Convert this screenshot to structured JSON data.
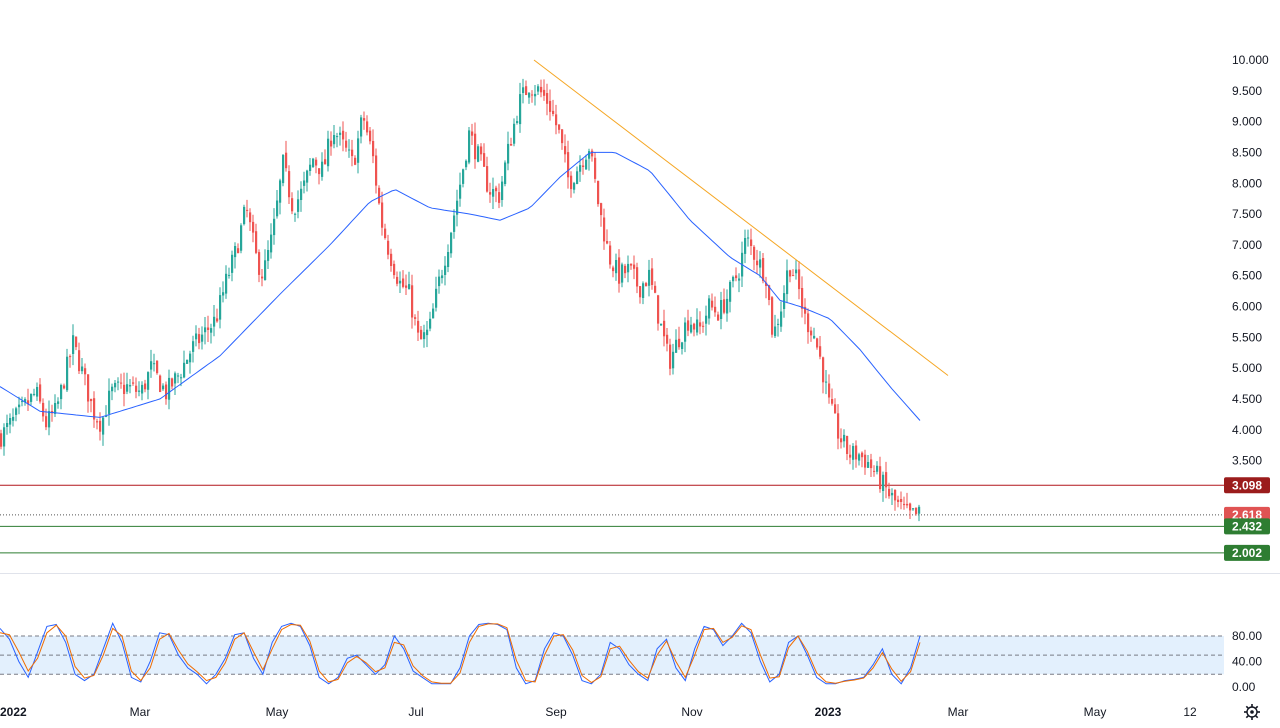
{
  "chart_data": [
    {
      "type": "candlestick",
      "y_ticks": [
        "10.000",
        "9.500",
        "9.000",
        "8.500",
        "8.000",
        "7.500",
        "7.000",
        "6.500",
        "6.000",
        "5.500",
        "5.000",
        "4.500",
        "4.000",
        "3.500"
      ],
      "ylim": [
        1.9,
        10.2
      ],
      "x_ticks": [
        "2022",
        "Mar",
        "May",
        "Jul",
        "Sep",
        "Nov",
        "2023",
        "Mar",
        "May",
        "12"
      ],
      "series_anchor_closes": [
        [
          0,
          3.9
        ],
        [
          10,
          4.1
        ],
        [
          25,
          4.4
        ],
        [
          35,
          4.6
        ],
        [
          45,
          4.1
        ],
        [
          55,
          4.3
        ],
        [
          72,
          5.4
        ],
        [
          80,
          5.0
        ],
        [
          92,
          4.3
        ],
        [
          100,
          4.1
        ],
        [
          110,
          4.6
        ],
        [
          125,
          4.7
        ],
        [
          140,
          4.6
        ],
        [
          150,
          5.0
        ],
        [
          165,
          4.6
        ],
        [
          178,
          4.9
        ],
        [
          190,
          5.3
        ],
        [
          205,
          5.6
        ],
        [
          215,
          5.8
        ],
        [
          225,
          6.4
        ],
        [
          235,
          6.9
        ],
        [
          245,
          7.6
        ],
        [
          255,
          6.8
        ],
        [
          262,
          6.5
        ],
        [
          272,
          7.2
        ],
        [
          282,
          8.3
        ],
        [
          292,
          7.6
        ],
        [
          302,
          7.9
        ],
        [
          312,
          8.4
        ],
        [
          322,
          8.2
        ],
        [
          332,
          8.9
        ],
        [
          342,
          8.6
        ],
        [
          352,
          8.3
        ],
        [
          362,
          9.1
        ],
        [
          372,
          8.4
        ],
        [
          380,
          7.4
        ],
        [
          388,
          6.9
        ],
        [
          398,
          6.4
        ],
        [
          408,
          6.2
        ],
        [
          418,
          5.4
        ],
        [
          428,
          5.6
        ],
        [
          438,
          6.4
        ],
        [
          448,
          7.1
        ],
        [
          458,
          7.9
        ],
        [
          468,
          8.8
        ],
        [
          478,
          8.4
        ],
        [
          488,
          7.9
        ],
        [
          498,
          7.8
        ],
        [
          508,
          8.6
        ],
        [
          518,
          9.3
        ],
        [
          528,
          9.6
        ],
        [
          538,
          9.5
        ],
        [
          548,
          9.3
        ],
        [
          558,
          8.8
        ],
        [
          568,
          8.0
        ],
        [
          578,
          8.3
        ],
        [
          588,
          8.6
        ],
        [
          598,
          7.6
        ],
        [
          608,
          6.8
        ],
        [
          618,
          6.5
        ],
        [
          628,
          6.6
        ],
        [
          638,
          6.3
        ],
        [
          648,
          6.5
        ],
        [
          658,
          5.8
        ],
        [
          668,
          5.1
        ],
        [
          678,
          5.5
        ],
        [
          688,
          5.8
        ],
        [
          698,
          5.6
        ],
        [
          708,
          6.0
        ],
        [
          718,
          5.9
        ],
        [
          728,
          6.2
        ],
        [
          738,
          6.6
        ],
        [
          745,
          7.1
        ],
        [
          755,
          6.8
        ],
        [
          765,
          6.5
        ],
        [
          772,
          5.5
        ],
        [
          780,
          6.0
        ],
        [
          788,
          6.7
        ],
        [
          796,
          6.4
        ],
        [
          804,
          5.8
        ],
        [
          812,
          5.6
        ],
        [
          820,
          5.1
        ],
        [
          828,
          4.4
        ],
        [
          838,
          3.9
        ],
        [
          848,
          3.6
        ],
        [
          858,
          3.6
        ],
        [
          868,
          3.45
        ],
        [
          878,
          3.2
        ],
        [
          888,
          2.95
        ],
        [
          898,
          2.75
        ],
        [
          908,
          2.6
        ],
        [
          918,
          2.62
        ]
      ],
      "moving_average_anchors": [
        [
          0,
          4.7
        ],
        [
          40,
          4.3
        ],
        [
          100,
          4.2
        ],
        [
          160,
          4.5
        ],
        [
          220,
          5.2
        ],
        [
          280,
          6.2
        ],
        [
          330,
          7.0
        ],
        [
          370,
          7.7
        ],
        [
          395,
          7.9
        ],
        [
          430,
          7.6
        ],
        [
          470,
          7.5
        ],
        [
          500,
          7.4
        ],
        [
          530,
          7.6
        ],
        [
          560,
          8.1
        ],
        [
          590,
          8.5
        ],
        [
          615,
          8.5
        ],
        [
          650,
          8.2
        ],
        [
          690,
          7.4
        ],
        [
          730,
          6.8
        ],
        [
          760,
          6.5
        ],
        [
          780,
          6.1
        ],
        [
          800,
          6.0
        ],
        [
          830,
          5.8
        ],
        [
          860,
          5.3
        ],
        [
          890,
          4.7
        ],
        [
          920,
          4.15
        ]
      ],
      "trendline": {
        "start": [
          534,
          10.0
        ],
        "end": [
          948,
          4.88
        ],
        "color": "#f5a623"
      },
      "horizontal_levels": [
        {
          "label": "3.098",
          "value": 3.098,
          "color": "#b2171b",
          "badge": "#9b1c1c"
        },
        {
          "label": "2.618",
          "value": 2.618,
          "color": "#555555",
          "badge": "#e05353",
          "dotted": true
        },
        {
          "label": "2.432",
          "value": 2.432,
          "color": "#2e7d32",
          "badge": "#2e7d32"
        },
        {
          "label": "2.002",
          "value": 2.002,
          "color": "#2e7d32",
          "badge": "#2e7d32"
        }
      ],
      "colors": {
        "up": "#26a69a",
        "down": "#ef5350",
        "ma": "#2962ff"
      }
    },
    {
      "type": "line",
      "indicator": "stochastic",
      "y_ticks": [
        "80.00",
        "40.00",
        "0.00"
      ],
      "ylim": [
        0,
        100
      ],
      "bands": [
        20,
        50,
        80
      ],
      "series": [
        {
          "color": "#2962ff",
          "values": [
            92,
            75,
            40,
            15,
            55,
            95,
            98,
            70,
            20,
            10,
            20,
            60,
            100,
            70,
            15,
            8,
            40,
            85,
            82,
            50,
            30,
            20,
            5,
            20,
            45,
            82,
            85,
            45,
            20,
            70,
            95,
            100,
            95,
            65,
            15,
            5,
            15,
            45,
            50,
            35,
            20,
            35,
            80,
            60,
            25,
            15,
            5,
            5,
            5,
            30,
            80,
            98,
            100,
            98,
            90,
            30,
            5,
            10,
            60,
            85,
            80,
            50,
            10,
            5,
            20,
            70,
            60,
            35,
            20,
            10,
            60,
            75,
            30,
            10,
            60,
            95,
            90,
            65,
            80,
            100,
            85,
            40,
            8,
            20,
            70,
            80,
            50,
            15,
            5,
            5,
            10,
            12,
            15,
            35,
            60,
            20,
            5,
            30,
            80
          ]
        },
        {
          "color": "#ef6c00",
          "values": [
            85,
            82,
            55,
            25,
            45,
            85,
            97,
            80,
            32,
            14,
            18,
            50,
            92,
            80,
            25,
            10,
            30,
            75,
            84,
            58,
            36,
            24,
            10,
            15,
            38,
            75,
            85,
            55,
            27,
            60,
            90,
            98,
            97,
            72,
            25,
            8,
            12,
            38,
            48,
            38,
            24,
            30,
            70,
            66,
            33,
            18,
            8,
            6,
            6,
            22,
            70,
            95,
            99,
            99,
            93,
            42,
            10,
            8,
            50,
            80,
            82,
            58,
            18,
            7,
            16,
            60,
            64,
            42,
            24,
            14,
            50,
            72,
            40,
            15,
            50,
            90,
            92,
            70,
            78,
            96,
            90,
            50,
            14,
            16,
            62,
            80,
            56,
            22,
            8,
            6,
            9,
            11,
            14,
            30,
            54,
            28,
            9,
            24,
            70
          ]
        }
      ]
    }
  ]
}
